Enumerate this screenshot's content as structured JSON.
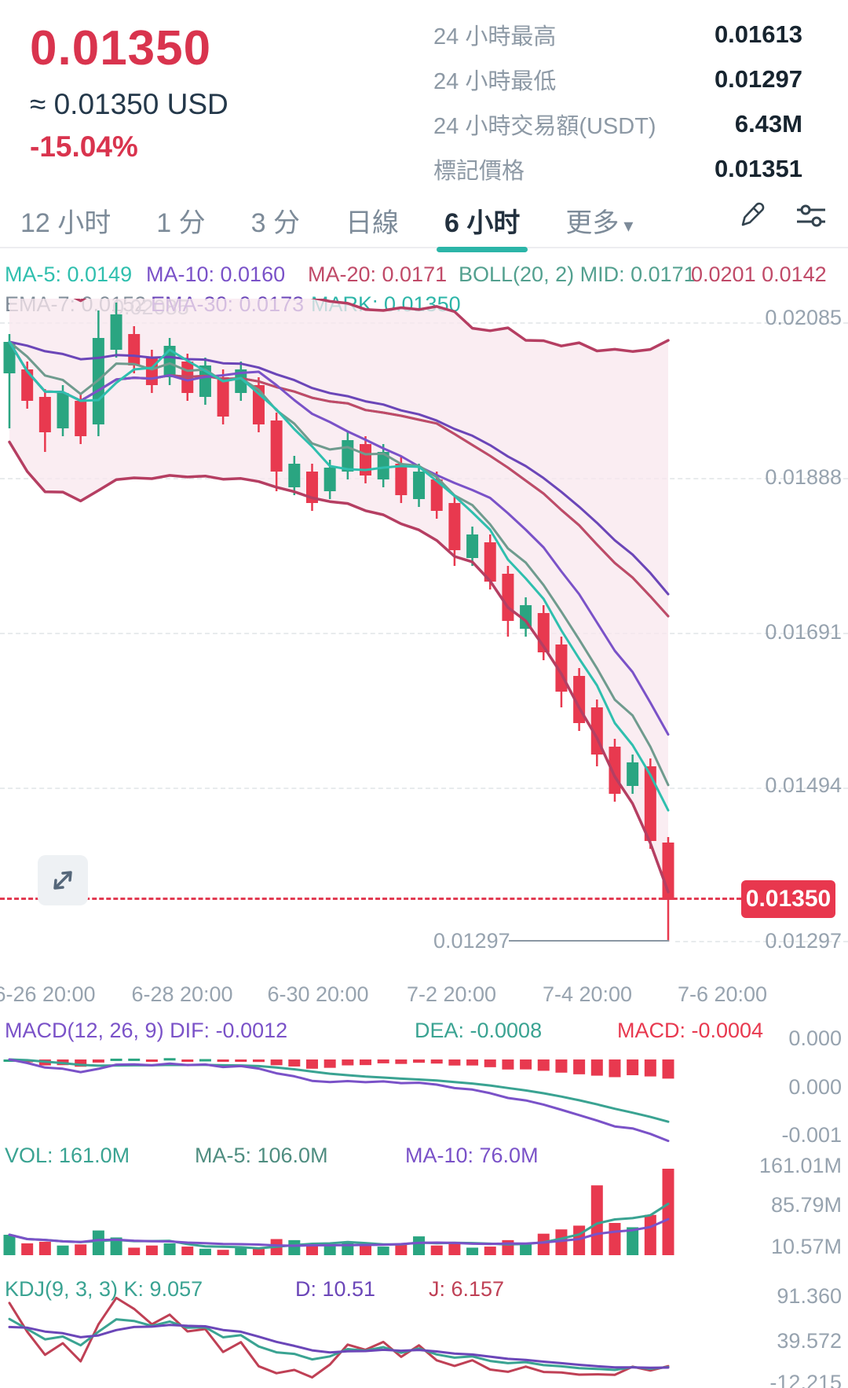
{
  "header": {
    "price": "0.01350",
    "approx": "≈ 0.01350 USD",
    "change": "-15.04%",
    "stats": [
      {
        "label": "24 小時最高",
        "value": "0.01613"
      },
      {
        "label": "24 小時最低",
        "value": "0.01297"
      },
      {
        "label": "24 小時交易額(USDT)",
        "value": "6.43M"
      },
      {
        "label": "標記價格",
        "value": "0.01351"
      }
    ]
  },
  "tabs": [
    {
      "label": "12 小时",
      "selected": false
    },
    {
      "label": "1 分",
      "selected": false
    },
    {
      "label": "3 分",
      "selected": false
    },
    {
      "label": "日線",
      "selected": false
    },
    {
      "label": "6 小时",
      "selected": true
    },
    {
      "label": "更多",
      "selected": false,
      "caret": "▾"
    }
  ],
  "indicators": {
    "ma5": "MA-5: 0.0149",
    "ma10": "MA-10: 0.0160",
    "ma20": "MA-20: 0.0171",
    "boll": "BOLL(20, 2) MID: 0.0171",
    "boll_bands": "0.0201 0.0142",
    "ema7": "EMA-7: 0.0152",
    "ema30": "EMA-30: 0.0173",
    "mark": "MARK: 0.01350",
    "overlap_axis_label": "0.02085"
  },
  "price_badge": "0.01350",
  "low_annotation": "0.01297",
  "macd_header": {
    "macd": "MACD(12, 26, 9) DIF: -0.0012",
    "dea": "DEA: -0.0008",
    "hist": "MACD: -0.0004"
  },
  "vol_header": {
    "vol": "VOL: 161.0M",
    "ma5": "MA-5: 106.0M",
    "ma10": "MA-10: 76.0M"
  },
  "kdj_header": {
    "kdj": "KDJ(9, 3, 3) K: 9.057",
    "d": "D: 10.51",
    "j": "J: 6.157"
  },
  "colors": {
    "up": "#2aa581",
    "down": "#e8394f",
    "ma5": "#2fbfae",
    "ema7": "#6f9b8e",
    "ma10": "#7a52c8",
    "ema30": "#6b46b8",
    "ma20": "#c04a68",
    "boll_band": "#b53e62",
    "boll_mid": "#53a08f",
    "band_fill": "#f8e7ee",
    "axis_text": "#97a3af",
    "red_text": "#d9344e",
    "dark_text": "#22303e",
    "gray_text": "#7d8b99",
    "teal": "#2cb5a8",
    "purple": "#7a52c8",
    "crimson": "#c04a68",
    "macd_dif": "#7a52c8",
    "macd_dea": "#3aa392",
    "kdj_k": "#3aa392",
    "kdj_d": "#6b46b8",
    "kdj_j": "#bf4055",
    "vol_ma5": "#3aa392",
    "vol_ma10": "#7a52c8"
  },
  "chart_data": {
    "type": "candlestick",
    "interval": "6 小时",
    "price_axis_labels": [
      "0.02085",
      "0.01888",
      "0.01691",
      "0.01494",
      "0.01297"
    ],
    "x_axis_labels": [
      "6-26 20:00",
      "6-28 20:00",
      "6-30 20:00",
      "7-2 20:00",
      "7-4 20:00",
      "7-6 20:00"
    ],
    "macd_axis_labels": [
      "0.000",
      "0.000",
      "-0.001"
    ],
    "vol_axis_labels": [
      "161.01M",
      "85.79M",
      "10.57M"
    ],
    "kdj_axis_labels": [
      "91.360",
      "39.572",
      "-12.215"
    ],
    "last_price": 0.0135,
    "low": 0.01297,
    "ylim": [
      0.0125,
      0.0211
    ],
    "candles_ohlc": [
      [
        0.0202,
        0.0207,
        0.0195,
        0.0206
      ],
      [
        0.02025,
        0.02035,
        0.01975,
        0.01985
      ],
      [
        0.0199,
        0.02,
        0.0192,
        0.01945
      ],
      [
        0.0195,
        0.02005,
        0.0194,
        0.01995
      ],
      [
        0.01985,
        0.01995,
        0.0193,
        0.0194
      ],
      [
        0.01955,
        0.021,
        0.0194,
        0.02065
      ],
      [
        0.0205,
        0.0211,
        0.0204,
        0.02095
      ],
      [
        0.0207,
        0.0208,
        0.0202,
        0.0203
      ],
      [
        0.0204,
        0.0205,
        0.01995,
        0.02005
      ],
      [
        0.02015,
        0.02065,
        0.02005,
        0.02055
      ],
      [
        0.02035,
        0.02045,
        0.01985,
        0.01995
      ],
      [
        0.0199,
        0.0204,
        0.0198,
        0.0203
      ],
      [
        0.02015,
        0.02025,
        0.01955,
        0.01965
      ],
      [
        0.01995,
        0.02035,
        0.01985,
        0.02025
      ],
      [
        0.02005,
        0.02015,
        0.01945,
        0.01955
      ],
      [
        0.0196,
        0.0197,
        0.0187,
        0.01895
      ],
      [
        0.01875,
        0.01915,
        0.01865,
        0.01905
      ],
      [
        0.01895,
        0.01905,
        0.01845,
        0.01855
      ],
      [
        0.0187,
        0.0191,
        0.0186,
        0.019
      ],
      [
        0.01895,
        0.01945,
        0.01885,
        0.01935
      ],
      [
        0.0193,
        0.0194,
        0.0188,
        0.0189
      ],
      [
        0.01885,
        0.0193,
        0.01875,
        0.0192
      ],
      [
        0.01905,
        0.01915,
        0.01855,
        0.01865
      ],
      [
        0.0186,
        0.01905,
        0.0185,
        0.01895
      ],
      [
        0.01885,
        0.01895,
        0.01835,
        0.01845
      ],
      [
        0.01855,
        0.01865,
        0.01775,
        0.01795
      ],
      [
        0.01785,
        0.01825,
        0.01775,
        0.01815
      ],
      [
        0.01805,
        0.01815,
        0.01745,
        0.01755
      ],
      [
        0.01765,
        0.01775,
        0.01685,
        0.01705
      ],
      [
        0.01695,
        0.01735,
        0.01685,
        0.01725
      ],
      [
        0.01715,
        0.01725,
        0.01655,
        0.01665
      ],
      [
        0.01675,
        0.01685,
        0.01595,
        0.01615
      ],
      [
        0.01635,
        0.01645,
        0.01565,
        0.01575
      ],
      [
        0.01595,
        0.01605,
        0.0152,
        0.01535
      ],
      [
        0.01545,
        0.01555,
        0.01475,
        0.01485
      ],
      [
        0.01495,
        0.01535,
        0.01485,
        0.01525
      ],
      [
        0.0152,
        0.0153,
        0.01415,
        0.01425
      ],
      [
        0.01423,
        0.0143,
        0.01297,
        0.0135
      ]
    ],
    "volumes_m": [
      38,
      22,
      25,
      18,
      20,
      46,
      33,
      14,
      18,
      22,
      16,
      12,
      10,
      14,
      12,
      30,
      28,
      22,
      18,
      25,
      20,
      16,
      22,
      35,
      18,
      24,
      14,
      16,
      28,
      22,
      40,
      48,
      55,
      130,
      60,
      52,
      75,
      161
    ]
  }
}
